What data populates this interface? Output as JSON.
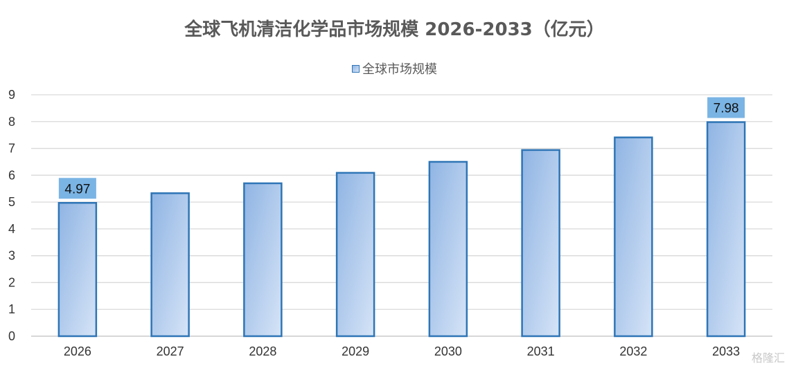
{
  "chart_data": {
    "type": "bar",
    "title": "全球飞机清洁化学品市场规模 2026-2033（亿元）",
    "categories": [
      "2026",
      "2027",
      "2028",
      "2029",
      "2030",
      "2031",
      "2032",
      "2033"
    ],
    "series": [
      {
        "name": "全球市场规模",
        "values": [
          4.97,
          5.33,
          5.7,
          6.09,
          6.5,
          6.94,
          7.41,
          7.98
        ]
      }
    ],
    "data_labels": [
      {
        "index": 0,
        "text": "4.97"
      },
      {
        "index": 7,
        "text": "7.98"
      }
    ],
    "ylim": [
      0,
      9
    ],
    "yticks": [
      0,
      1,
      2,
      3,
      4,
      5,
      6,
      7,
      8,
      9
    ],
    "grid": true,
    "legend_position": "top-center",
    "colors": {
      "bar_fill_start": "#8fb4e3",
      "bar_fill_end": "#d6e4f7",
      "bar_border": "#2e75b6",
      "label_bg": "#7ab4e4",
      "grid": "#d9d9d9"
    }
  },
  "watermark": "格隆汇"
}
